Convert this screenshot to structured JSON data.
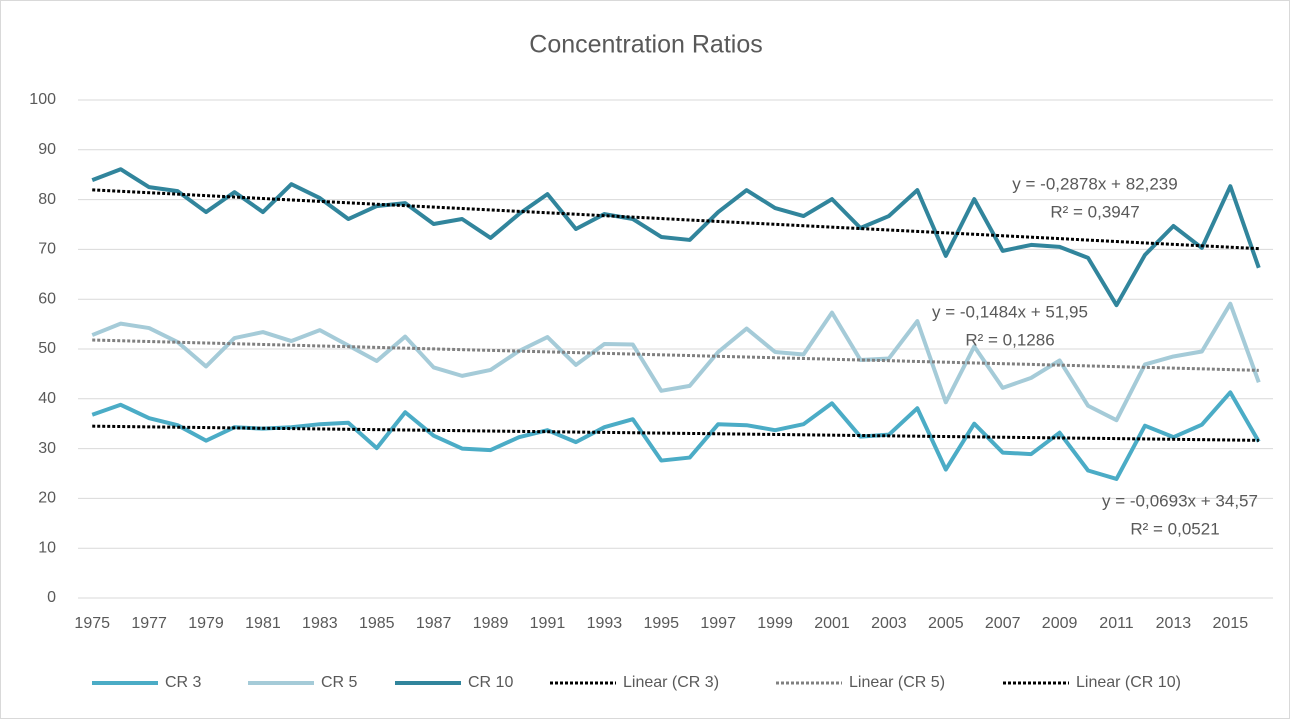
{
  "chart_data": {
    "type": "line",
    "title": "Concentration Ratios",
    "categories": [
      "1975",
      null,
      "1977",
      null,
      "1979",
      null,
      "1981",
      null,
      "1983",
      null,
      "1985",
      null,
      "1987",
      null,
      "1989",
      null,
      "1991",
      null,
      "1993",
      null,
      "1995",
      null,
      "1997",
      null,
      "1999",
      null,
      "2001",
      null,
      "2003",
      null,
      "2005",
      null,
      "2007",
      null,
      "2009",
      null,
      "2011",
      null,
      "2013",
      null,
      "2015",
      null
    ],
    "series": [
      {
        "name": "CR 3",
        "color": "#4bacc6",
        "values": [
          36.8,
          38.8,
          36.1,
          34.7,
          31.6,
          34.3,
          34.0,
          34.3,
          34.9,
          35.2,
          30.1,
          37.3,
          32.6,
          30.0,
          29.7,
          32.3,
          33.7,
          31.3,
          34.3,
          35.9,
          27.6,
          28.2,
          34.9,
          34.7,
          33.7,
          34.9,
          39.1,
          32.4,
          32.8,
          38.1,
          25.8,
          35.0,
          29.2,
          28.9,
          33.2,
          25.6,
          23.9,
          34.6,
          32.3,
          34.8,
          41.3,
          31.4
        ]
      },
      {
        "name": "CR 5",
        "color": "#a5cbd8",
        "values": [
          52.8,
          55.1,
          54.2,
          51.4,
          46.5,
          52.2,
          53.4,
          51.6,
          53.8,
          50.7,
          47.6,
          52.5,
          46.3,
          44.6,
          45.8,
          49.6,
          52.4,
          46.8,
          51.0,
          50.9,
          41.6,
          42.6,
          49.4,
          54.1,
          49.4,
          48.9,
          57.3,
          47.8,
          48.1,
          55.6,
          39.3,
          50.5,
          42.2,
          44.2,
          47.7,
          38.6,
          35.7,
          46.9,
          48.5,
          49.5,
          59.1,
          43.3
        ]
      },
      {
        "name": "CR 10",
        "color": "#31859c",
        "values": [
          83.9,
          86.1,
          82.5,
          81.7,
          77.5,
          81.5,
          77.5,
          83.1,
          80.3,
          76.1,
          78.7,
          79.3,
          75.1,
          76.1,
          72.3,
          77.1,
          81.1,
          74.1,
          77.1,
          76.1,
          72.5,
          71.9,
          77.5,
          81.9,
          78.3,
          76.7,
          80.1,
          74.3,
          76.7,
          81.9,
          68.7,
          80.1,
          69.7,
          70.9,
          70.5,
          68.3,
          58.8,
          68.9,
          74.7,
          70.3,
          82.7,
          66.3
        ]
      }
    ],
    "trendlines": [
      {
        "name": "Linear (CR 3)",
        "color": "#000000",
        "slope": -0.0693,
        "intercept": 34.57,
        "equation": "y = -0,0693x + 34,57",
        "r2_label": "R² = 0,0521"
      },
      {
        "name": "Linear (CR 5)",
        "color": "#808080",
        "slope": -0.1484,
        "intercept": 51.95,
        "equation": "y = -0,1484x + 51,95",
        "r2_label": "R² = 0,1286"
      },
      {
        "name": "Linear (CR 10)",
        "color": "#000000",
        "slope": -0.2878,
        "intercept": 82.239,
        "equation": "y = -0,2878x + 82,239",
        "r2_label": "R² = 0,3947"
      }
    ],
    "ylim": [
      0,
      100
    ],
    "yticks": [
      0,
      10,
      20,
      30,
      40,
      50,
      60,
      70,
      80,
      90,
      100
    ],
    "grid": true,
    "legend": "bottom"
  }
}
